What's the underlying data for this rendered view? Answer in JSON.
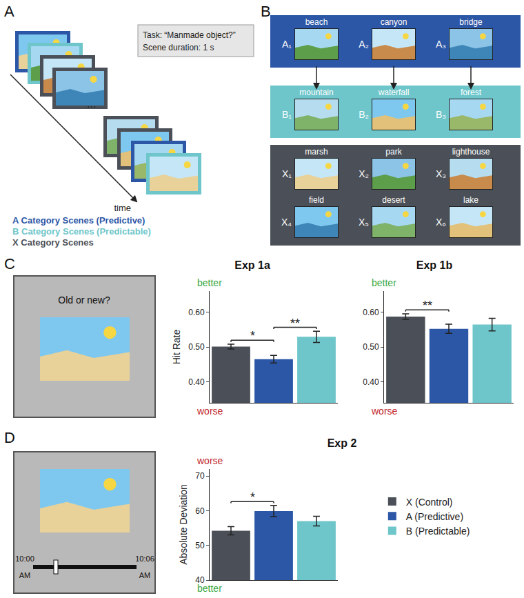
{
  "panel_labels": [
    "A",
    "B",
    "C",
    "D"
  ],
  "panel_a": {
    "task_box": [
      "Task: “Manmade object?”",
      "Scene duration: 1 s"
    ],
    "ellipsis": "...",
    "arrow_label": "time",
    "legend": [
      {
        "text": "A Category Scenes (Predictive)",
        "color": "#2c56a6"
      },
      {
        "text": "B Category Scenes (Predictable)",
        "color": "#6ec6ca"
      },
      {
        "text": "X Category Scenes",
        "color": "#4b5058"
      }
    ]
  },
  "panel_b": {
    "groups": [
      {
        "color": "#2c56a6",
        "items": [
          {
            "label": "A₁",
            "name": "beach"
          },
          {
            "label": "A₂",
            "name": "canyon"
          },
          {
            "label": "A₃",
            "name": "bridge"
          }
        ]
      },
      {
        "color": "#6ec6ca",
        "items": [
          {
            "label": "B₁",
            "name": "mountain"
          },
          {
            "label": "B₂",
            "name": "waterfall"
          },
          {
            "label": "B₃",
            "name": "forest"
          }
        ]
      },
      {
        "color": "#4b5058",
        "items": [
          {
            "label": "X₁",
            "name": "marsh"
          },
          {
            "label": "X₂",
            "name": "park"
          },
          {
            "label": "X₃",
            "name": "lighthouse"
          },
          {
            "label": "X₄",
            "name": "field"
          },
          {
            "label": "X₅",
            "name": "desert"
          },
          {
            "label": "X₆",
            "name": "lake"
          }
        ]
      }
    ]
  },
  "panel_c": {
    "prompt": "Old or new?"
  },
  "panel_d": {
    "slider_labels": [
      "10:00 AM",
      "10:06 AM"
    ]
  },
  "chart_data": [
    {
      "type": "bar",
      "title": "Exp 1a",
      "categories": [
        "X (Control)",
        "A (Predictive)",
        "B (Predictable)"
      ],
      "values": [
        0.501,
        0.465,
        0.529
      ],
      "errors": [
        0.007,
        0.011,
        0.016
      ],
      "colors": [
        "#4b5058",
        "#2c56a6",
        "#6ec6ca"
      ],
      "y_label": "Hit Rate",
      "ylim": [
        0.34,
        0.66
      ],
      "yticks": [
        {
          "value": 0.4,
          "label": "0.40"
        },
        {
          "value": 0.5,
          "label": "0.50"
        },
        {
          "value": 0.6,
          "label": "0.60"
        }
      ],
      "tick_labels": "y",
      "grid": false,
      "axis_ends": {
        "top": {
          "text": "better",
          "color": "#3aa845"
        },
        "bottom": {
          "text": "worse",
          "color": "#c1272d"
        }
      },
      "significance": [
        {
          "between": [
            "X (Control)",
            "A (Predictive)"
          ],
          "text": "*"
        },
        {
          "between": [
            "A (Predictive)",
            "B (Predictable)"
          ],
          "text": "**"
        }
      ]
    },
    {
      "type": "bar",
      "title": "Exp 1b",
      "categories": [
        "X (Control)",
        "A (Predictive)",
        "B (Predictable)"
      ],
      "values": [
        0.587,
        0.552,
        0.564
      ],
      "errors": [
        0.008,
        0.013,
        0.018
      ],
      "colors": [
        "#4b5058",
        "#2c56a6",
        "#6ec6ca"
      ],
      "ylim": [
        0.34,
        0.66
      ],
      "yticks": [
        {
          "value": 0.4,
          "label": "0.40"
        },
        {
          "value": 0.5,
          "label": "0.50"
        },
        {
          "value": 0.6,
          "label": "0.60"
        }
      ],
      "tick_labels": "y",
      "grid": false,
      "axis_ends": {
        "top": {
          "text": "better",
          "color": "#3aa845"
        },
        "bottom": {
          "text": "worse",
          "color": "#c1272d"
        }
      },
      "significance": [
        {
          "between": [
            "X (Control)",
            "A (Predictive)"
          ],
          "text": "**"
        }
      ]
    },
    {
      "type": "bar",
      "title": "Exp 2",
      "categories": [
        "X (Control)",
        "A (Predictive)",
        "B (Predictable)"
      ],
      "values": [
        54.2,
        59.9,
        57.0
      ],
      "errors": [
        1.2,
        1.6,
        1.4
      ],
      "colors": [
        "#4b5058",
        "#2c56a6",
        "#6ec6ca"
      ],
      "y_label": "Absolute Deviation",
      "ylim": [
        40,
        72
      ],
      "yticks": [
        40,
        50,
        60,
        70
      ],
      "tick_labels": "y",
      "grid": false,
      "legend": "right",
      "axis_ends": {
        "top": {
          "text": "worse",
          "color": "#c1272d"
        },
        "bottom": {
          "text": "better",
          "color": "#3aa845"
        }
      },
      "significance": [
        {
          "between": [
            "X (Control)",
            "A (Predictive)"
          ],
          "text": "*"
        }
      ]
    }
  ]
}
